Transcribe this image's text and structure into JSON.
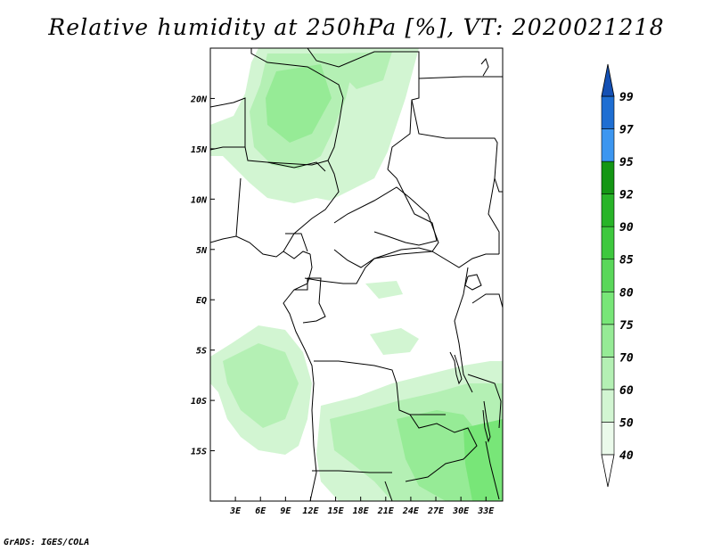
{
  "title": "Relative humidity at 250hPa [%], VT: 2020021218",
  "footer": "GrADS: IGES/COLA",
  "map": {
    "lon_range": [
      0,
      35
    ],
    "lat_range": [
      -20,
      25
    ],
    "x_ticks": [
      "3E",
      "6E",
      "9E",
      "12E",
      "15E",
      "18E",
      "21E",
      "24E",
      "27E",
      "30E",
      "33E"
    ],
    "y_ticks": [
      "20N",
      "15N",
      "10N",
      "5N",
      "EQ",
      "5S",
      "10S",
      "15S"
    ]
  },
  "colorbar": {
    "labels": [
      "40",
      "50",
      "60",
      "70",
      "75",
      "80",
      "85",
      "90",
      "92",
      "95",
      "97",
      "99"
    ],
    "colors": [
      "#ebfaeb",
      "#d2f5d2",
      "#b4f0b4",
      "#96eb96",
      "#78e678",
      "#5ad75a",
      "#3ec83e",
      "#28b428",
      "#149614",
      "#3c96f0",
      "#1e6ed2",
      "#1450b4"
    ]
  }
}
